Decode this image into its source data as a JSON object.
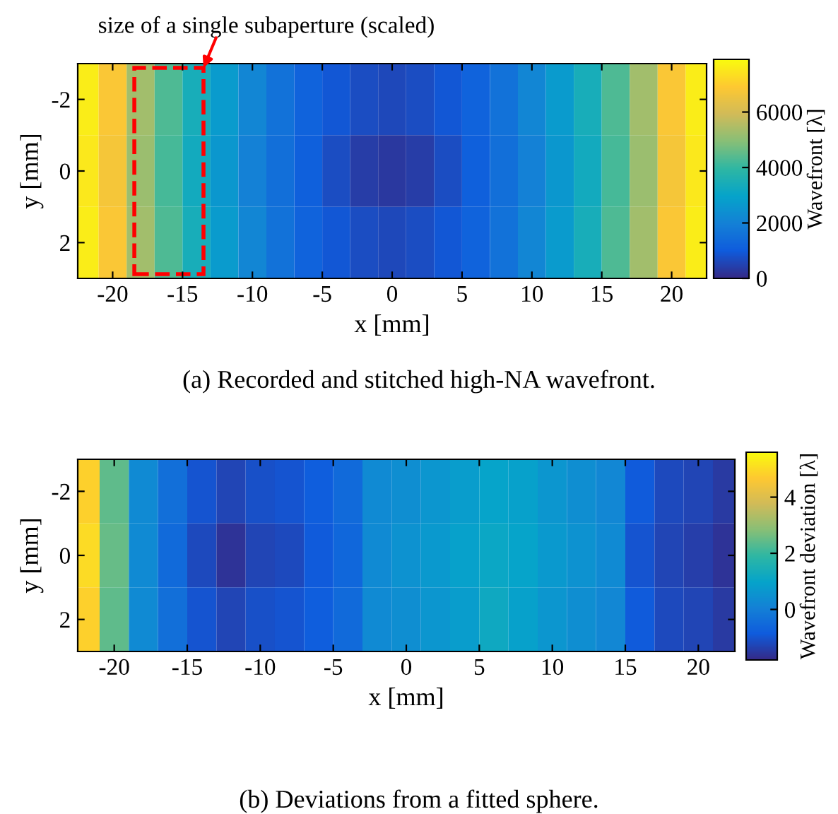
{
  "chart_data": [
    {
      "type": "heatmap",
      "xlabel": "x [mm]",
      "ylabel": "y [mm]",
      "clabel": "Wavefront [λ]",
      "x": [
        -22,
        -20,
        -18,
        -16,
        -14,
        -12,
        -10,
        -8,
        -6,
        -4,
        -2,
        0,
        2,
        4,
        6,
        8,
        10,
        12,
        14,
        16,
        18,
        20,
        22
      ],
      "y_categories": [
        "-2",
        "0",
        "2"
      ],
      "cells": [
        [
          7600,
          6800,
          5300,
          4300,
          3400,
          2700,
          2100,
          1600,
          1200,
          900,
          700,
          600,
          700,
          900,
          1200,
          1600,
          2100,
          2700,
          3400,
          4300,
          5300,
          6800,
          7600
        ],
        [
          7500,
          6700,
          5200,
          4200,
          3300,
          2600,
          2000,
          1500,
          1100,
          700,
          400,
          300,
          400,
          700,
          1100,
          1500,
          2000,
          2600,
          3300,
          4200,
          5200,
          6700,
          7500
        ],
        [
          7600,
          6800,
          5300,
          4300,
          3400,
          2700,
          2100,
          1600,
          1200,
          900,
          700,
          600,
          700,
          900,
          1200,
          1600,
          2100,
          2700,
          3400,
          4300,
          5300,
          6800,
          7600
        ]
      ],
      "xlim": [
        -22.5,
        22.5
      ],
      "xticks": [
        -20,
        -15,
        -10,
        -5,
        0,
        5,
        10,
        15,
        20
      ],
      "clim": [
        0,
        7900
      ],
      "cticks": [
        0,
        2000,
        4000,
        6000
      ],
      "annotations": [
        "size of a single subaperture (scaled)",
        "(a) Recorded and stitched high-NA wavefront."
      ]
    },
    {
      "type": "heatmap",
      "xlabel": "x [mm]",
      "ylabel": "y [mm]",
      "clabel": "Wavefront deviation [λ]",
      "x": [
        -22,
        -20,
        -18,
        -16,
        -14,
        -12,
        -10,
        -8,
        -6,
        -4,
        -2,
        0,
        2,
        4,
        6,
        8,
        10,
        12,
        14,
        16,
        18,
        20,
        22
      ],
      "y_categories": [
        "-2",
        "0",
        "2"
      ],
      "cells": [
        [
          4.8,
          2.4,
          0.3,
          -0.4,
          -1.0,
          -1.3,
          -1.1,
          -1.0,
          -0.8,
          -0.5,
          0.3,
          0.4,
          0.6,
          0.8,
          1.0,
          0.9,
          0.6,
          0.4,
          0.2,
          -0.9,
          -1.2,
          -1.3,
          -1.5
        ],
        [
          5.0,
          2.5,
          0.3,
          -0.5,
          -1.2,
          -1.6,
          -1.3,
          -1.2,
          -0.9,
          -0.6,
          0.3,
          0.5,
          0.7,
          0.9,
          1.1,
          1.0,
          0.7,
          0.5,
          0.3,
          -1.0,
          -1.3,
          -1.4,
          -1.6
        ],
        [
          4.8,
          2.4,
          0.3,
          -0.4,
          -1.0,
          -1.3,
          -1.1,
          -1.0,
          -0.8,
          -0.5,
          0.3,
          0.4,
          0.6,
          0.8,
          1.2,
          0.9,
          0.6,
          0.4,
          0.2,
          -0.9,
          -1.2,
          -1.3,
          -1.5
        ]
      ],
      "xlim": [
        -22.5,
        22.5
      ],
      "xticks": [
        -20,
        -15,
        -10,
        -5,
        0,
        5,
        10,
        15,
        20
      ],
      "clim": [
        -1.8,
        5.6
      ],
      "cticks": [
        0,
        2,
        4
      ],
      "annotations": [
        "(b) Deviations from a fitted sphere."
      ]
    }
  ]
}
